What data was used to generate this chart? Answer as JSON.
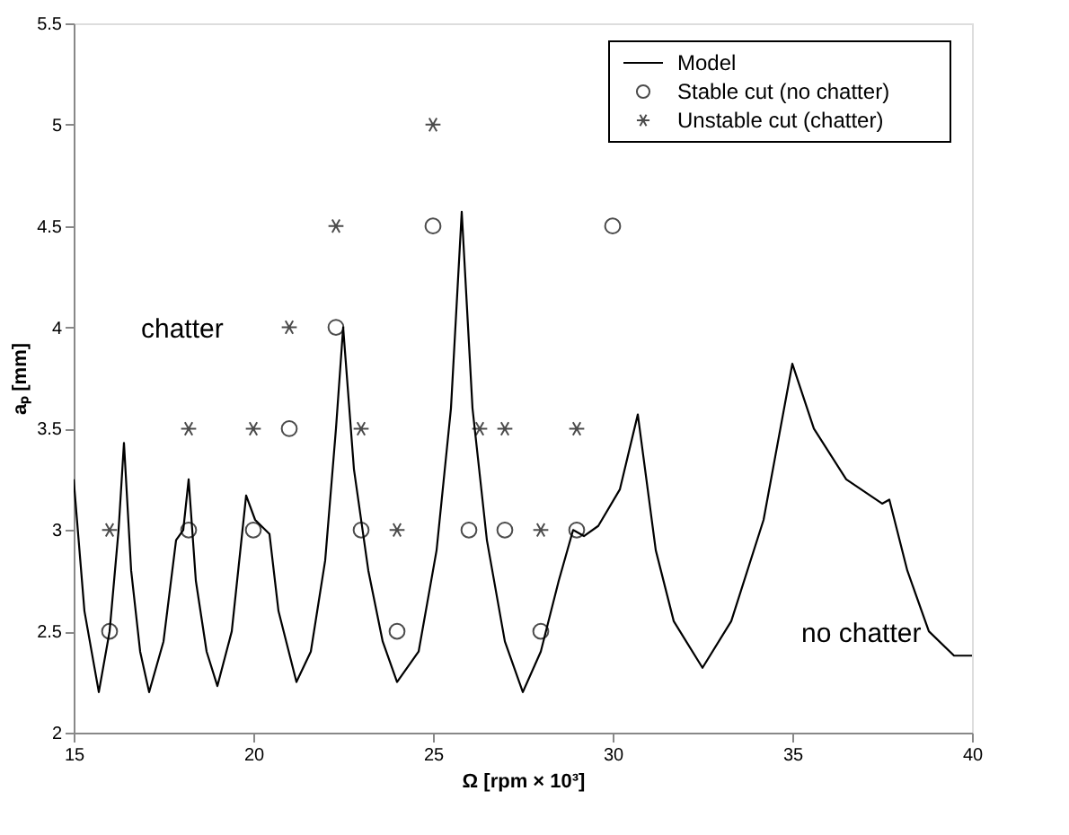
{
  "chart_data": {
    "type": "line",
    "xlabel": "Ω [rpm × 10³]",
    "ylabel": "aₚ [mm]",
    "xlim": [
      15,
      40
    ],
    "ylim": [
      2,
      5.5
    ],
    "xticks": [
      15,
      20,
      25,
      30,
      35,
      40
    ],
    "yticks": [
      2,
      2.5,
      3,
      3.5,
      4,
      4.5,
      5,
      5.5
    ],
    "grid": false,
    "legend": "top right",
    "series": [
      {
        "name": "Model",
        "color": "#000000",
        "marker": "none",
        "line_style": "solid",
        "x": [
          15,
          15.3,
          15.7,
          16.0,
          16.25,
          16.4,
          16.6,
          16.85,
          17.1,
          17.5,
          17.85,
          18.05,
          18.2,
          18.4,
          18.7,
          19.0,
          19.4,
          19.8,
          20.05,
          20.45,
          20.7,
          21.2,
          21.6,
          22.0,
          22.3,
          22.5,
          22.8,
          23.2,
          23.6,
          24.0,
          24.6,
          25.1,
          25.5,
          25.8,
          26.1,
          26.5,
          27.0,
          27.5,
          28.0,
          28.5,
          28.9,
          29.2,
          29.6,
          30.2,
          30.7,
          31.2,
          31.7,
          32.5,
          33.3,
          34.2,
          35.0,
          35.6,
          36.5,
          37.5,
          37.7,
          38.2,
          38.8,
          39.5,
          40
        ],
        "values": [
          3.25,
          2.6,
          2.2,
          2.5,
          3.0,
          3.43,
          2.8,
          2.4,
          2.2,
          2.45,
          2.95,
          3.0,
          3.25,
          2.75,
          2.4,
          2.23,
          2.5,
          3.17,
          3.05,
          2.98,
          2.6,
          2.25,
          2.4,
          2.85,
          3.5,
          4.0,
          3.3,
          2.8,
          2.45,
          2.25,
          2.4,
          2.9,
          3.6,
          4.57,
          3.6,
          2.95,
          2.45,
          2.2,
          2.4,
          2.75,
          3.0,
          2.97,
          3.02,
          3.2,
          3.57,
          2.9,
          2.55,
          2.32,
          2.55,
          3.05,
          3.82,
          3.5,
          3.25,
          3.13,
          3.15,
          2.8,
          2.5,
          2.38,
          2.38
        ]
      },
      {
        "name": "Stable cut (no chatter)",
        "type": "scatter",
        "color": "#000000",
        "marker": "circle",
        "x": [
          16,
          18.2,
          20,
          21,
          22.3,
          23,
          24,
          25,
          26,
          27,
          28,
          29,
          30
        ],
        "values": [
          2.5,
          3,
          3,
          3.5,
          4,
          3,
          2.5,
          4.5,
          3,
          3,
          2.5,
          3,
          4.5
        ]
      },
      {
        "name": "Unstable cut (chatter)",
        "type": "scatter",
        "color": "#000000",
        "marker": "cross",
        "x": [
          16,
          18.2,
          20,
          21,
          22.3,
          23,
          24,
          25,
          26.3,
          27,
          28,
          29
        ],
        "values": [
          3,
          3.5,
          3.5,
          4,
          4.5,
          3.5,
          3,
          5,
          3.5,
          3.5,
          3,
          3.5
        ]
      }
    ],
    "annotations": [
      "chatter",
      "no chatter"
    ]
  }
}
